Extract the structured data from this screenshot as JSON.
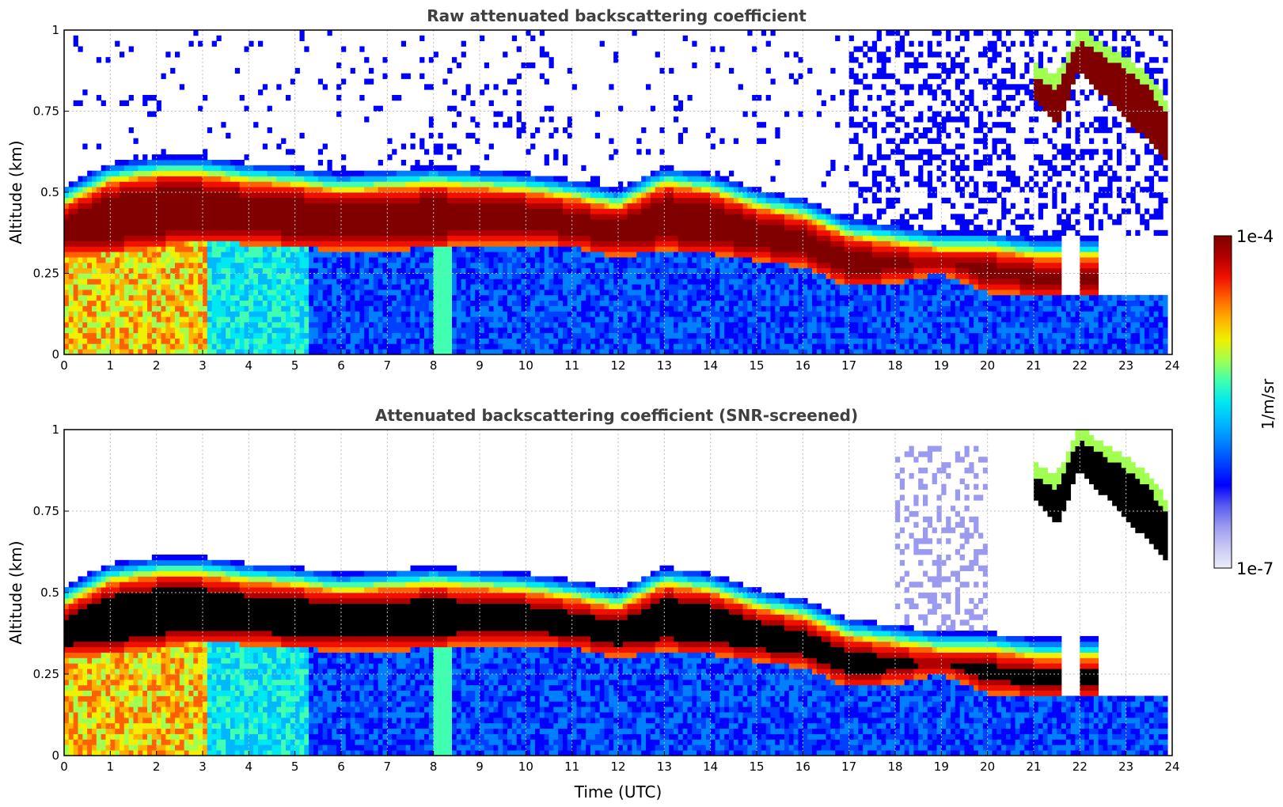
{
  "colors": {
    "background": "#ffffff",
    "title": "#404040",
    "grid": "#bfbfbf",
    "saturated_screened": "#000000"
  },
  "colormap": [
    "#ececfa",
    "#c8c8f4",
    "#9a9af0",
    "#5a5af0",
    "#0000ff",
    "#0040ff",
    "#0080ff",
    "#00b8ff",
    "#00e8f0",
    "#40ffb0",
    "#a0ff50",
    "#f0f000",
    "#ffb000",
    "#ff6000",
    "#f01000",
    "#b00000",
    "#800000"
  ],
  "chart_data": [
    {
      "type": "heatmap",
      "title": "Raw attenuated backscattering coefficient",
      "xlabel": "",
      "ylabel": "Altitude (km)",
      "xlim": [
        0,
        24
      ],
      "ylim": [
        0,
        1
      ],
      "xticks": [
        "0",
        "1",
        "2",
        "3",
        "4",
        "5",
        "6",
        "7",
        "8",
        "9",
        "10",
        "11",
        "12",
        "13",
        "14",
        "15",
        "16",
        "17",
        "18",
        "19",
        "20",
        "21",
        "22",
        "23",
        "24"
      ],
      "yticks": [
        "0",
        "0.25",
        "0.5",
        "0.75",
        "1"
      ],
      "grid": true,
      "screened": false,
      "layer_base_km": [
        [
          0,
          0.3
        ],
        [
          1,
          0.31
        ],
        [
          2,
          0.33
        ],
        [
          3,
          0.35
        ],
        [
          4,
          0.34
        ],
        [
          5,
          0.33
        ],
        [
          6,
          0.32
        ],
        [
          7,
          0.32
        ],
        [
          8,
          0.33
        ],
        [
          9,
          0.34
        ],
        [
          10,
          0.34
        ],
        [
          11,
          0.33
        ],
        [
          12,
          0.3
        ],
        [
          13,
          0.32
        ],
        [
          14,
          0.31
        ],
        [
          15,
          0.29
        ],
        [
          16,
          0.27
        ],
        [
          17,
          0.21
        ],
        [
          18,
          0.22
        ],
        [
          19,
          0.25
        ],
        [
          20,
          0.19
        ],
        [
          21,
          0.18
        ]
      ],
      "layer_top_km": [
        [
          0,
          0.46
        ],
        [
          1,
          0.53
        ],
        [
          2,
          0.55
        ],
        [
          3,
          0.55
        ],
        [
          4,
          0.53
        ],
        [
          5,
          0.52
        ],
        [
          6,
          0.5
        ],
        [
          7,
          0.51
        ],
        [
          8,
          0.52
        ],
        [
          9,
          0.51
        ],
        [
          10,
          0.5
        ],
        [
          11,
          0.48
        ],
        [
          12,
          0.45
        ],
        [
          13,
          0.52
        ],
        [
          14,
          0.5
        ],
        [
          15,
          0.45
        ],
        [
          16,
          0.42
        ],
        [
          17,
          0.36
        ],
        [
          18,
          0.34
        ],
        [
          19,
          0.32
        ],
        [
          20,
          0.32
        ],
        [
          21,
          0.3
        ]
      ],
      "upper_layer_top_km": [
        [
          21.0,
          0.86
        ],
        [
          21.5,
          0.82
        ],
        [
          22.0,
          0.97
        ],
        [
          22.5,
          0.92
        ],
        [
          23.0,
          0.88
        ],
        [
          23.5,
          0.82
        ],
        [
          23.9,
          0.74
        ]
      ],
      "upper_layer_base_km": [
        [
          21.0,
          0.8
        ],
        [
          21.5,
          0.7
        ],
        [
          22.0,
          0.88
        ],
        [
          22.5,
          0.8
        ],
        [
          23.0,
          0.72
        ],
        [
          23.5,
          0.66
        ],
        [
          23.9,
          0.6
        ]
      ]
    },
    {
      "type": "heatmap",
      "title": "Attenuated backscattering coefficient (SNR-screened)",
      "xlabel": "Time (UTC)",
      "ylabel": "Altitude (km)",
      "xlim": [
        0,
        24
      ],
      "ylim": [
        0,
        1
      ],
      "xticks": [
        "0",
        "1",
        "2",
        "3",
        "4",
        "5",
        "6",
        "7",
        "8",
        "9",
        "10",
        "11",
        "12",
        "13",
        "14",
        "15",
        "16",
        "17",
        "18",
        "19",
        "20",
        "21",
        "22",
        "23",
        "24"
      ],
      "yticks": [
        "0",
        "0.25",
        "0.5",
        "0.75",
        "1"
      ],
      "grid": true,
      "screened": true,
      "layer_base_km": [
        [
          0,
          0.3
        ],
        [
          1,
          0.31
        ],
        [
          2,
          0.33
        ],
        [
          3,
          0.35
        ],
        [
          4,
          0.34
        ],
        [
          5,
          0.33
        ],
        [
          6,
          0.32
        ],
        [
          7,
          0.32
        ],
        [
          8,
          0.33
        ],
        [
          9,
          0.34
        ],
        [
          10,
          0.34
        ],
        [
          11,
          0.33
        ],
        [
          12,
          0.3
        ],
        [
          13,
          0.32
        ],
        [
          14,
          0.31
        ],
        [
          15,
          0.29
        ],
        [
          16,
          0.27
        ],
        [
          17,
          0.21
        ],
        [
          18,
          0.22
        ],
        [
          19,
          0.25
        ],
        [
          20,
          0.19
        ],
        [
          21,
          0.18
        ]
      ],
      "layer_top_km": [
        [
          0,
          0.46
        ],
        [
          1,
          0.53
        ],
        [
          2,
          0.55
        ],
        [
          3,
          0.55
        ],
        [
          4,
          0.53
        ],
        [
          5,
          0.52
        ],
        [
          6,
          0.5
        ],
        [
          7,
          0.51
        ],
        [
          8,
          0.52
        ],
        [
          9,
          0.51
        ],
        [
          10,
          0.5
        ],
        [
          11,
          0.48
        ],
        [
          12,
          0.45
        ],
        [
          13,
          0.52
        ],
        [
          14,
          0.5
        ],
        [
          15,
          0.45
        ],
        [
          16,
          0.42
        ],
        [
          17,
          0.36
        ],
        [
          18,
          0.34
        ],
        [
          19,
          0.32
        ],
        [
          20,
          0.32
        ],
        [
          21,
          0.3
        ]
      ],
      "upper_layer_top_km": [
        [
          21.0,
          0.86
        ],
        [
          21.5,
          0.82
        ],
        [
          22.0,
          0.97
        ],
        [
          22.5,
          0.92
        ],
        [
          23.0,
          0.88
        ],
        [
          23.5,
          0.82
        ],
        [
          23.9,
          0.74
        ]
      ],
      "upper_layer_base_km": [
        [
          21.0,
          0.8
        ],
        [
          21.5,
          0.7
        ],
        [
          22.0,
          0.88
        ],
        [
          22.5,
          0.8
        ],
        [
          23.0,
          0.72
        ],
        [
          23.5,
          0.66
        ],
        [
          23.9,
          0.6
        ]
      ]
    }
  ],
  "colorbar": {
    "label": "1/m/sr",
    "max_label": "1e-4",
    "min_label": "1e-7",
    "range": [
      "1e-7",
      "1e-4"
    ],
    "scale": "log"
  }
}
